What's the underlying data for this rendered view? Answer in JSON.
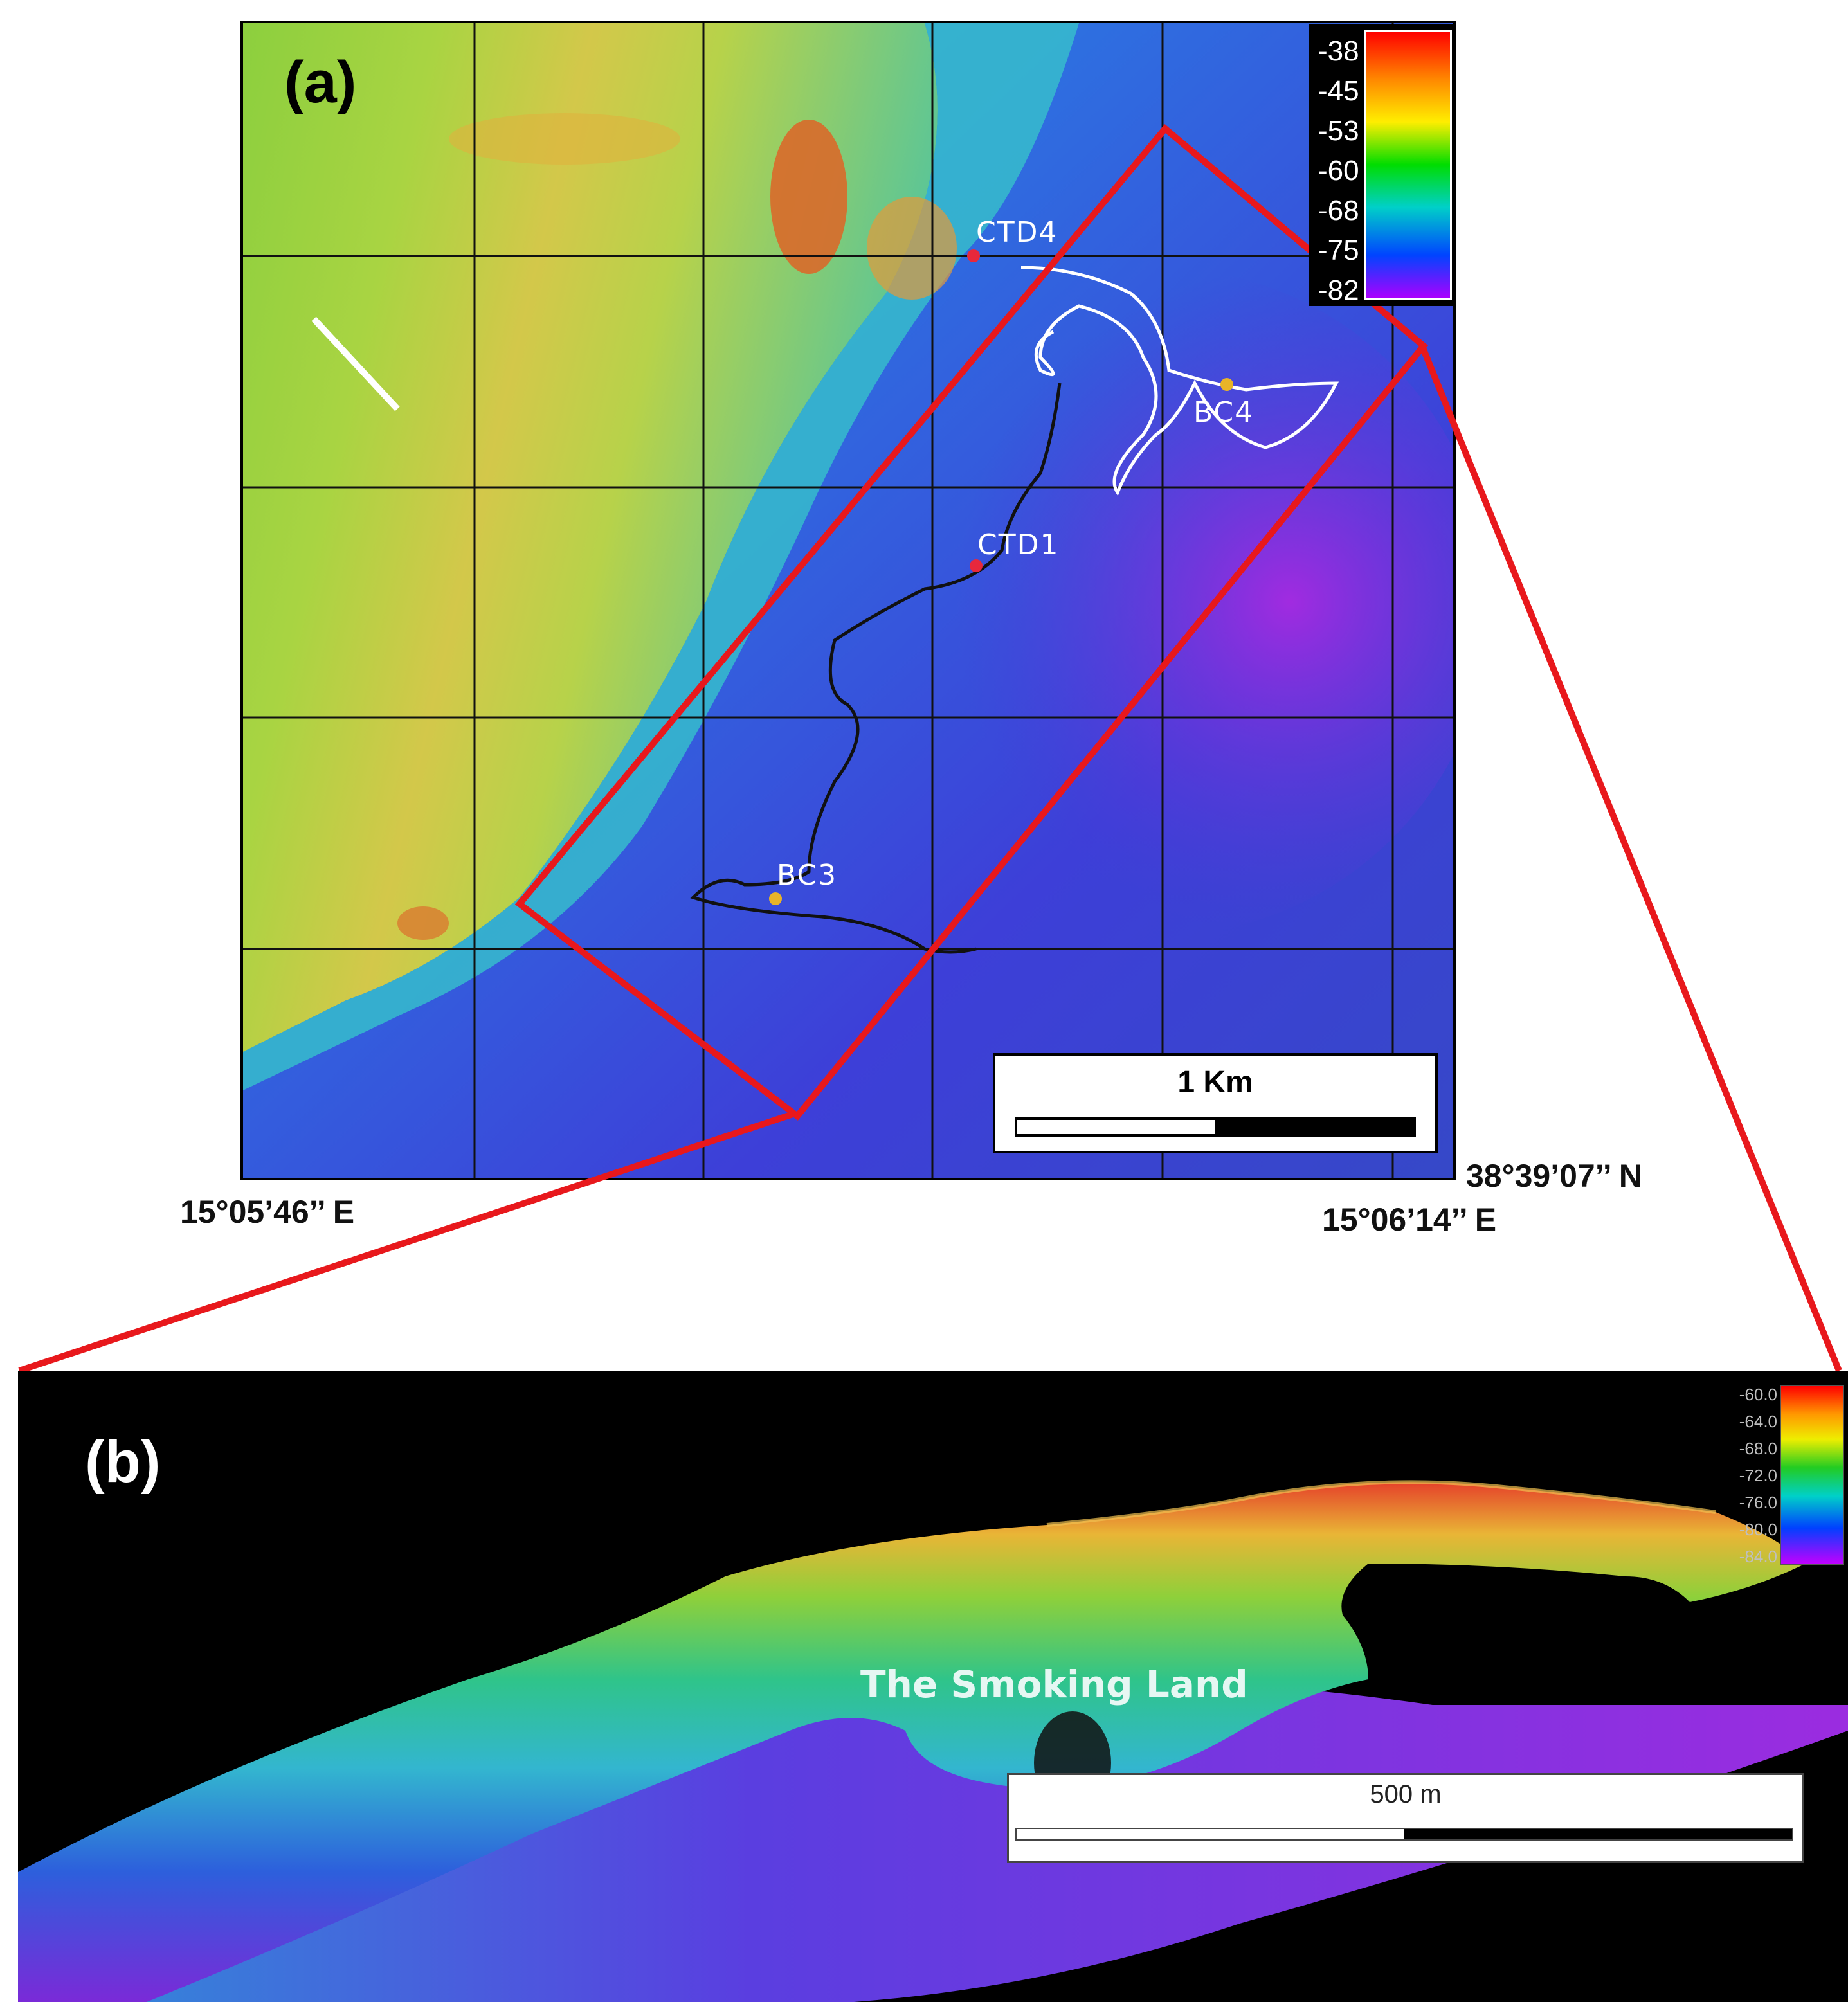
{
  "panel_a": {
    "label": "(a)",
    "colorbar": {
      "ticks": [
        "-38",
        "-45",
        "-53",
        "-60",
        "-68",
        "-75",
        "-82"
      ],
      "colors": [
        "#ff0000",
        "#ff8800",
        "#ffff00",
        "#00dd00",
        "#00cccc",
        "#0044ff",
        "#aa00ff"
      ]
    },
    "stations": [
      {
        "name": "CTD4",
        "color": "#e8283c"
      },
      {
        "name": "CTD1",
        "color": "#e8283c"
      },
      {
        "name": "BC4",
        "color": "#e8b428"
      },
      {
        "name": "BC3",
        "color": "#e8b428"
      }
    ],
    "scale_bar": "1 Km",
    "coords": {
      "lon_west": "15°05’46’’ E",
      "lat_south": "38°39’07’’ N",
      "lon_east": "15°06’14’’ E"
    }
  },
  "panel_b": {
    "label": "(b)",
    "colorbar": {
      "ticks": [
        "-60.0",
        "-64.0",
        "-68.0",
        "-72.0",
        "-76.0",
        "-80.0",
        "-84.0"
      ]
    },
    "feature": "The Smoking Land",
    "scale_bar": "500 m"
  },
  "highlight_color": "#e8181c"
}
